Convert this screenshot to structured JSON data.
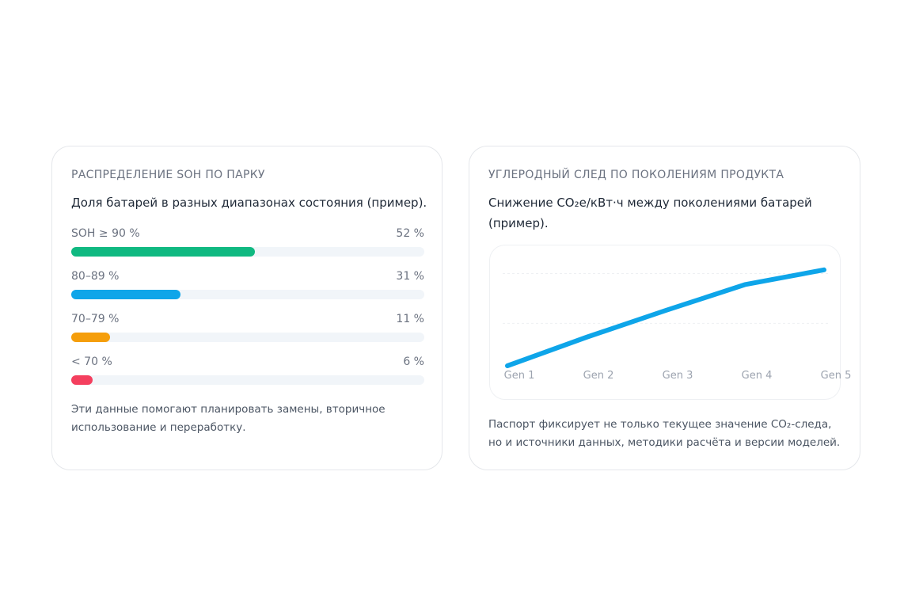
{
  "soh_card": {
    "title": "РАСПРЕДЕЛЕНИЕ SOH ПО ПАРКУ",
    "subtitle": "Доля батарей в разных диапазонах состояния (пример).",
    "rows": [
      {
        "label": "SOH ≥ 90 %",
        "value_text": "52 %",
        "percent": 52,
        "color": "#10b981"
      },
      {
        "label": "80–89 %",
        "value_text": "31 %",
        "percent": 31,
        "color": "#0ea5e9"
      },
      {
        "label": "70–79 %",
        "value_text": "11 %",
        "percent": 11,
        "color": "#f59e0b"
      },
      {
        "label": "< 70 %",
        "value_text": "6 %",
        "percent": 6,
        "color": "#f43f5e"
      }
    ],
    "note": "Эти данные помогают планировать замены, вторичное использование и переработку."
  },
  "co2_card": {
    "title": "УГЛЕРОДНЫЙ СЛЕД ПО ПОКОЛЕНИЯМ ПРОДУКТА",
    "subtitle": "Снижение CO₂e/кВт·ч между поколениями батарей (пример).",
    "note": "Паспорт фиксирует не только текущее значение CO₂-следа, но и источники данных, методики расчёта и версии моделей."
  },
  "chart_data": {
    "type": "line",
    "categories": [
      "Gen 1",
      "Gen 2",
      "Gen 3",
      "Gen 4",
      "Gen 5"
    ],
    "series": [
      {
        "values": [
          0.0,
          0.31,
          0.6,
          0.88,
          1.04
        ],
        "color": "#0ea5e9"
      }
    ],
    "ylim": [
      0,
      1.15
    ],
    "grid": true,
    "title": "",
    "xlabel": "",
    "ylabel": ""
  }
}
